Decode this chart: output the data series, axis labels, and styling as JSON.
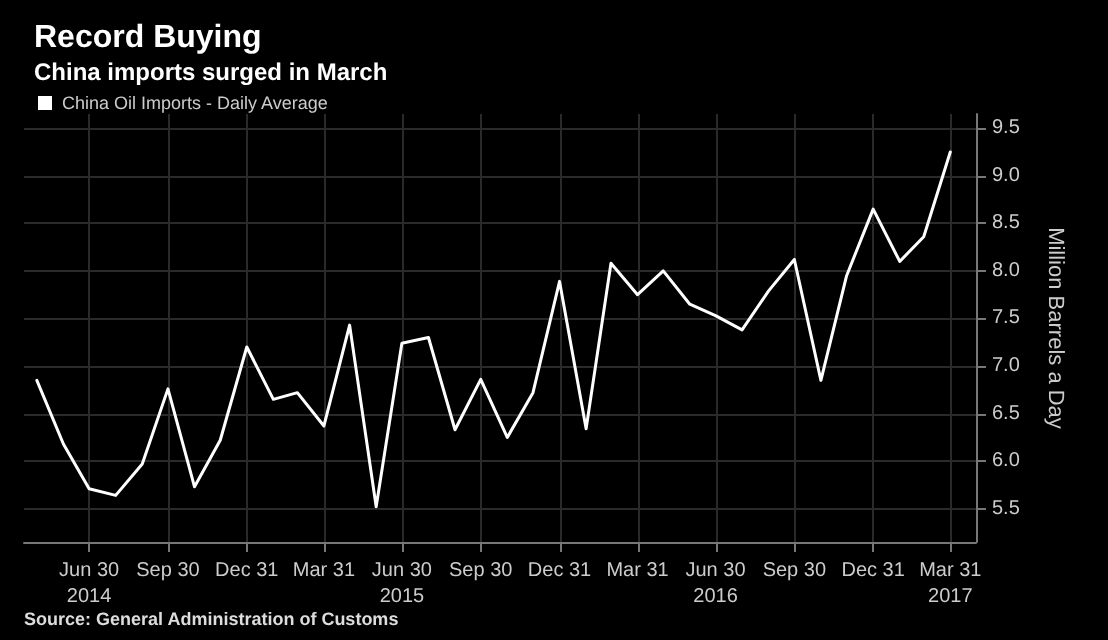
{
  "chart_data": {
    "type": "line",
    "title": "Record Buying",
    "subtitle": "China imports surged in March",
    "ylabel": "Million Barrels a Day",
    "x": [
      "2014-04-30",
      "2014-05-31",
      "2014-06-30",
      "2014-07-31",
      "2014-08-31",
      "2014-09-30",
      "2014-10-31",
      "2014-11-30",
      "2014-12-31",
      "2015-01-31",
      "2015-02-28",
      "2015-03-31",
      "2015-04-30",
      "2015-05-31",
      "2015-06-30",
      "2015-07-31",
      "2015-08-31",
      "2015-09-30",
      "2015-10-31",
      "2015-11-30",
      "2015-12-31",
      "2016-01-31",
      "2016-02-29",
      "2016-03-31",
      "2016-04-30",
      "2016-05-31",
      "2016-06-30",
      "2016-07-31",
      "2016-08-31",
      "2016-09-30",
      "2016-10-31",
      "2016-11-30",
      "2016-12-31",
      "2017-01-31",
      "2017-02-28",
      "2017-03-31"
    ],
    "series": [
      {
        "name": "China Oil Imports - Daily Average",
        "color": "#ffffff",
        "values": [
          6.85,
          6.18,
          5.71,
          5.64,
          5.97,
          6.76,
          5.73,
          6.22,
          7.2,
          6.65,
          6.72,
          6.37,
          7.43,
          5.52,
          7.24,
          7.3,
          6.33,
          6.86,
          6.25,
          6.72,
          7.89,
          6.34,
          8.08,
          7.75,
          8.0,
          7.65,
          7.53,
          7.38,
          7.79,
          8.12,
          6.85,
          7.95,
          8.65,
          8.1,
          8.36,
          9.25
        ]
      }
    ],
    "xlim": [
      "2014-04-15",
      "2017-04-30"
    ],
    "xticks": [
      {
        "value": "2014-06-30",
        "label": "Jun 30\n2014"
      },
      {
        "value": "2014-09-30",
        "label": "Sep 30"
      },
      {
        "value": "2014-12-31",
        "label": "Dec 31"
      },
      {
        "value": "2015-03-31",
        "label": "Mar 31"
      },
      {
        "value": "2015-06-30",
        "label": "Jun 30\n2015"
      },
      {
        "value": "2015-09-30",
        "label": "Sep 30"
      },
      {
        "value": "2015-12-31",
        "label": "Dec 31"
      },
      {
        "value": "2016-03-31",
        "label": "Mar 31"
      },
      {
        "value": "2016-06-30",
        "label": "Jun 30\n2016"
      },
      {
        "value": "2016-09-30",
        "label": "Sep 30"
      },
      {
        "value": "2016-12-31",
        "label": "Dec 31"
      },
      {
        "value": "2017-03-31",
        "label": "Mar 31\n2017"
      }
    ],
    "ylim": [
      5.15,
      9.65
    ],
    "yticks": [
      {
        "value": 5.5,
        "label": "5.5"
      },
      {
        "value": 6,
        "label": "6.0"
      },
      {
        "value": 6.5,
        "label": "6.5"
      },
      {
        "value": 7,
        "label": "7.0"
      },
      {
        "value": 7.5,
        "label": "7.5"
      },
      {
        "value": 8,
        "label": "8.0"
      },
      {
        "value": 8.5,
        "label": "8.5"
      },
      {
        "value": 9,
        "label": "9.0"
      },
      {
        "value": 9.5,
        "label": "9.5"
      }
    ],
    "grid": true,
    "legend": "top left",
    "marker": "none",
    "line_style": "solid",
    "annotations": [
      "Source: General Administration of Customs"
    ]
  }
}
